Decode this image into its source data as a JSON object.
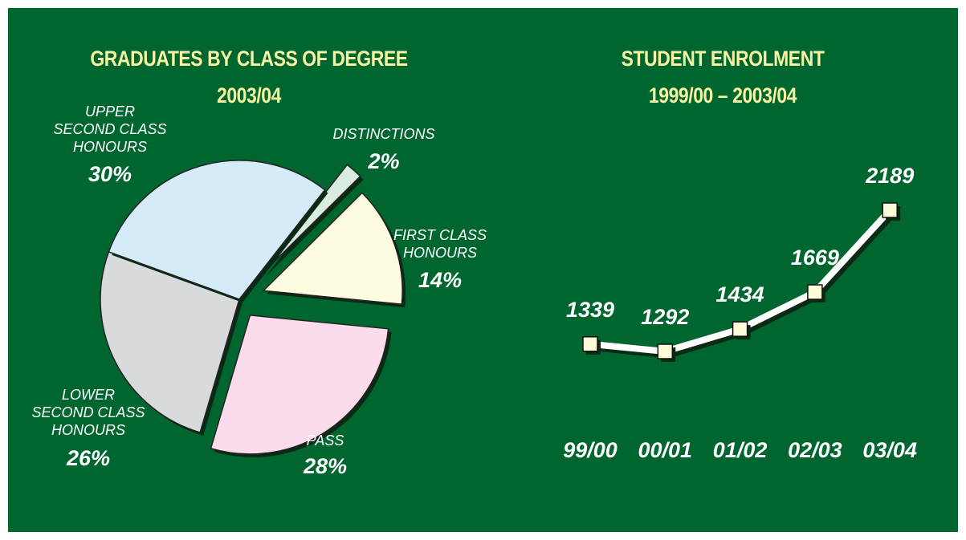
{
  "chart_data": [
    {
      "type": "pie",
      "title": "GRADUATES BY CLASS OF DEGREE",
      "subtitle": "2003/04",
      "categories": [
        "DISTINCTIONS",
        "FIRST CLASS\nHONOURS",
        "PASS",
        "LOWER\nSECOND CLASS\nHONOURS",
        "UPPER\nSECOND CLASS\nHONOURS"
      ],
      "values": [
        2,
        14,
        28,
        26,
        30
      ],
      "value_labels": [
        "2%",
        "14%",
        "28%",
        "26%",
        "30%"
      ],
      "colors": [
        "#d9ece0",
        "#fdfbe0",
        "#fbdcec",
        "#d9dadc",
        "#d4ecf8"
      ]
    },
    {
      "type": "line",
      "title": "STUDENT ENROLMENT",
      "subtitle": "1999/00 – 2003/04",
      "categories": [
        "99/00",
        "00/01",
        "01/02",
        "02/03",
        "03/04"
      ],
      "values": [
        1339,
        1292,
        1434,
        1669,
        2189
      ],
      "color": "#ffffff",
      "marker_color": "#fdfbd8"
    }
  ]
}
